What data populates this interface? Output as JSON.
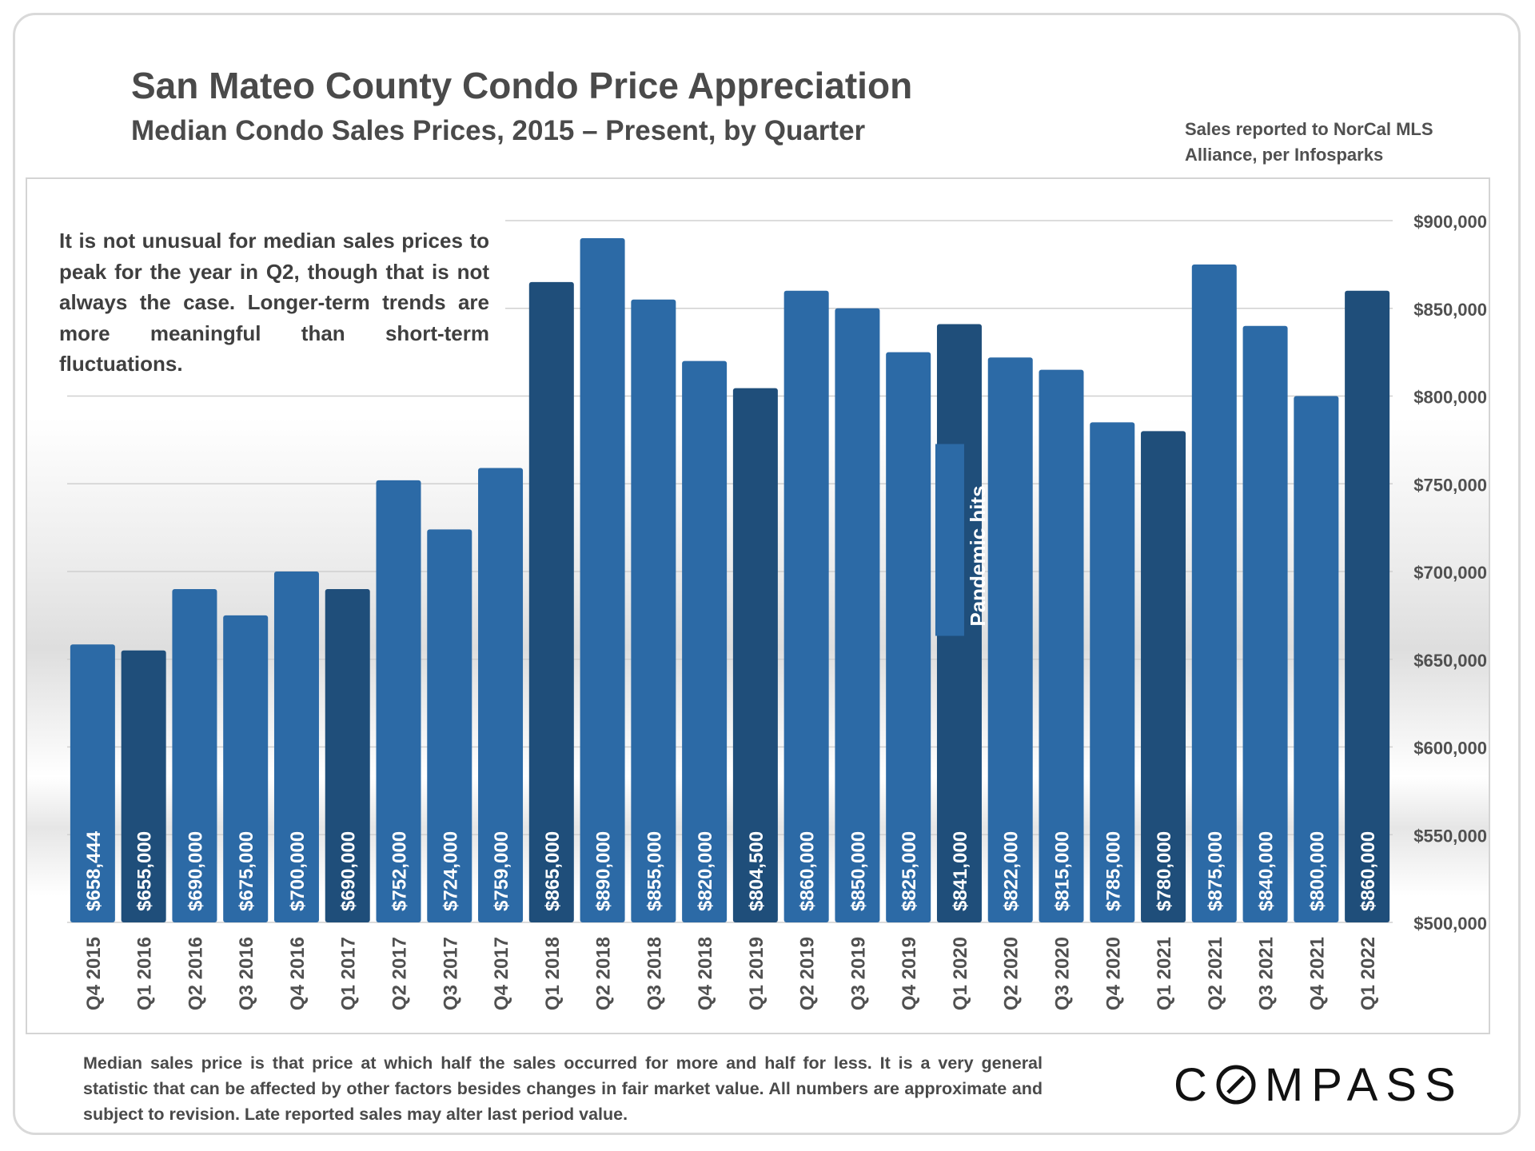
{
  "header": {
    "title": "San Mateo County Condo Price Appreciation",
    "subtitle": "Median Condo Sales Prices, 2015 – Present, by Quarter",
    "source": "Sales reported to NorCal MLS Alliance, per Infosparks"
  },
  "callout": "It is not unusual for median sales prices to peak for the year in Q2, though that is not always the case. Longer-term trends are more meaningful than short-term fluctuations.",
  "footnote": "Median sales price is that price at which half the sales occurred for more and half for less. It is a very general statistic that can be affected by other factors besides changes in fair market value. All numbers are approximate and subject to revision. Late reported sales may alter last period value.",
  "logo": {
    "text_left": "C",
    "text_right": "MPASS",
    "full": "COMPASS"
  },
  "colors": {
    "bar_light": "#2c6aa6",
    "bar_dark": "#1f4e7a",
    "label_text": "#ffffff",
    "axis_text": "#505050",
    "grid": "#d0d0d0"
  },
  "chart_data": {
    "type": "bar",
    "title": "San Mateo County Condo Price Appreciation",
    "subtitle": "Median Condo Sales Prices, 2015 – Present, by Quarter",
    "xlabel": "",
    "ylabel": "",
    "ylim": [
      500000,
      900000
    ],
    "yticks": [
      500000,
      550000,
      600000,
      650000,
      700000,
      750000,
      800000,
      850000,
      900000
    ],
    "ytick_labels": [
      "$500,000",
      "$550,000",
      "$600,000",
      "$650,000",
      "$700,000",
      "$750,000",
      "$800,000",
      "$850,000",
      "$900,000"
    ],
    "y_axis_side": "right",
    "categories": [
      "Q4 2015",
      "Q1 2016",
      "Q2 2016",
      "Q3 2016",
      "Q4 2016",
      "Q1 2017",
      "Q2 2017",
      "Q3 2017",
      "Q4 2017",
      "Q1 2018",
      "Q2 2018",
      "Q3 2018",
      "Q4 2018",
      "Q1 2019",
      "Q2 2019",
      "Q3 2019",
      "Q4 2019",
      "Q1 2020",
      "Q2 2020",
      "Q3 2020",
      "Q4 2020",
      "Q1 2021",
      "Q2 2021",
      "Q3 2021",
      "Q4 2021",
      "Q1 2022"
    ],
    "values": [
      658444,
      655000,
      690000,
      675000,
      700000,
      690000,
      752000,
      724000,
      759000,
      865000,
      890000,
      855000,
      820000,
      804500,
      860000,
      850000,
      825000,
      841000,
      822000,
      815000,
      785000,
      780000,
      875000,
      840000,
      800000,
      860000
    ],
    "labels": [
      "$658,444",
      "$655,000",
      "$690,000",
      "$675,000",
      "$700,000",
      "$690,000",
      "$752,000",
      "$724,000",
      "$759,000",
      "$865,000",
      "$890,000",
      "$855,000",
      "$820,000",
      "$804,500",
      "$860,000",
      "$850,000",
      "$825,000",
      "$841,000",
      "$822,000",
      "$815,000",
      "$785,000",
      "$780,000",
      "$875,000",
      "$840,000",
      "$800,000",
      "$860,000"
    ],
    "highlight_first_quarter": true,
    "annotations": [
      {
        "category": "Q1 2020",
        "text": "Pandemic hits"
      }
    ]
  }
}
